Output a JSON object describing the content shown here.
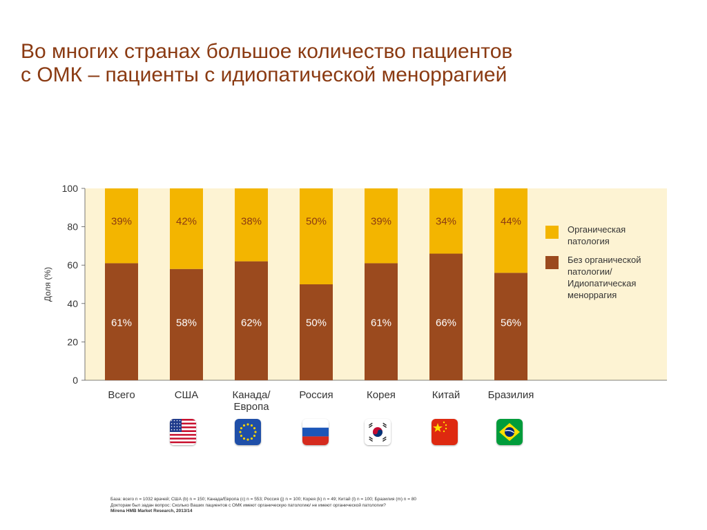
{
  "title": {
    "line1": "Во многих странах большое количество пациентов",
    "line2": "с ОМК – пациенты с идиопатической меноррагией"
  },
  "colors": {
    "background_plot": "#fdf3d3",
    "organic": "#f3b500",
    "idiopathic": "#9b4a1e",
    "title": "#8a3a12"
  },
  "chart_data": {
    "type": "bar",
    "stacked": true,
    "categories": [
      "Всего",
      "США",
      "Канада/\nЕвропа",
      "Россия",
      "Корея",
      "Китай",
      "Бразилия"
    ],
    "series": [
      {
        "name": "Без органической патологии/ Идиопатическая меноррагия",
        "values": [
          61,
          58,
          62,
          50,
          61,
          66,
          56
        ],
        "labels": [
          "61%",
          "58%",
          "62%",
          "50%",
          "61%",
          "66%",
          "56%"
        ],
        "color": "#9b4a1e"
      },
      {
        "name": "Органическая патология",
        "values": [
          39,
          42,
          38,
          50,
          39,
          34,
          44
        ],
        "labels": [
          "39%",
          "42%",
          "38%",
          "50%",
          "39%",
          "34%",
          "44%"
        ],
        "color": "#f3b500"
      }
    ],
    "ylabel": "Доля (%)",
    "ylim": [
      0,
      100
    ],
    "yticks": [
      "0",
      "20",
      "40",
      "60",
      "80",
      "100"
    ],
    "legend": [
      {
        "lines": [
          "Органическая",
          "патология"
        ],
        "color": "#f3b500"
      },
      {
        "lines": [
          "Без органической",
          "патологии/",
          "Идиопатическая",
          "меноррагия"
        ],
        "color": "#9b4a1e"
      }
    ],
    "legend_position": "right"
  },
  "flags": [
    {
      "category": "США",
      "icon": "usa-flag-icon"
    },
    {
      "category": "Канада/Европа",
      "icon": "eu-flag-icon"
    },
    {
      "category": "Россия",
      "icon": "russia-flag-icon"
    },
    {
      "category": "Корея",
      "icon": "korea-flag-icon"
    },
    {
      "category": "Китай",
      "icon": "china-flag-icon"
    },
    {
      "category": "Бразилия",
      "icon": "brazil-flag-icon"
    }
  ],
  "footnote": {
    "line1": "База: всего n = 1032 врачей; США (b) n = 150; Канада/Европа (c) n = 553; Россия (j) n = 100; Корея (k) n = 49; Китай (l)  n = 100; Бразилия (m) n = 80",
    "line2": "Докторам был задан вопрос: Сколько Ваших пациентов с ОМК имеют органическую патологию/ не имеют органической патологии?",
    "line3": "Mirena HMB Market Research, 2013/14"
  }
}
